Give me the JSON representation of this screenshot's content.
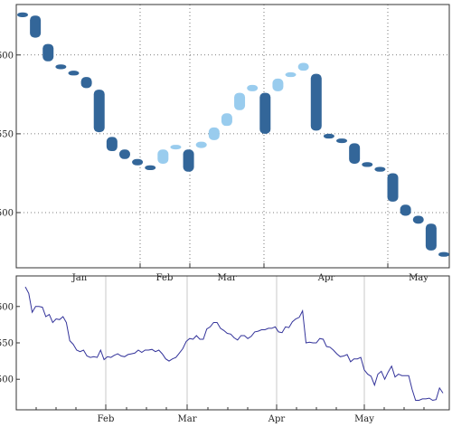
{
  "chart_data": [
    {
      "type": "candlestick",
      "panel": "main",
      "y_ticks": [
        500,
        550,
        600
      ],
      "ylim": [
        465,
        632
      ],
      "x_ticks": [
        "Jan",
        "Feb",
        "Mar",
        "Apr",
        "May"
      ],
      "grid": "dotted",
      "colors": {
        "down": "#336699",
        "up": "#99ccee"
      },
      "candles": [
        {
          "open": 627,
          "close": 624
        },
        {
          "open": 625,
          "close": 611
        },
        {
          "open": 607,
          "close": 596
        },
        {
          "open": 594,
          "close": 591
        },
        {
          "open": 590,
          "close": 587
        },
        {
          "open": 586,
          "close": 579
        },
        {
          "open": 578,
          "close": 551
        },
        {
          "open": 548,
          "close": 539
        },
        {
          "open": 540,
          "close": 534
        },
        {
          "open": 534,
          "close": 530
        },
        {
          "open": 530,
          "close": 527
        },
        {
          "open": 531,
          "close": 540
        },
        {
          "open": 541,
          "close": 543
        },
        {
          "open": 540,
          "close": 526
        },
        {
          "open": 541,
          "close": 545
        },
        {
          "open": 546,
          "close": 554
        },
        {
          "open": 555,
          "close": 563
        },
        {
          "open": 565,
          "close": 576
        },
        {
          "open": 577,
          "close": 581
        },
        {
          "open": 576,
          "close": 550
        },
        {
          "open": 577,
          "close": 585
        },
        {
          "open": 586,
          "close": 589
        },
        {
          "open": 590,
          "close": 595
        },
        {
          "open": 588,
          "close": 552
        },
        {
          "open": 550,
          "close": 547
        },
        {
          "open": 547,
          "close": 545
        },
        {
          "open": 544,
          "close": 531
        },
        {
          "open": 532,
          "close": 529
        },
        {
          "open": 529,
          "close": 526
        },
        {
          "open": 525,
          "close": 507
        },
        {
          "open": 505,
          "close": 498
        },
        {
          "open": 498,
          "close": 493
        },
        {
          "open": 493,
          "close": 476
        },
        {
          "open": 475,
          "close": 472
        }
      ]
    },
    {
      "type": "line",
      "panel": "overview",
      "y_ticks": [
        500,
        550,
        600
      ],
      "ylim": [
        458,
        642
      ],
      "x_ticks": [
        "Feb",
        "Mar",
        "Apr",
        "May"
      ],
      "grid": "vertical",
      "color": "#33339a",
      "values": [
        627,
        618,
        592,
        600,
        600,
        599,
        586,
        589,
        578,
        583,
        582,
        586,
        578,
        553,
        548,
        540,
        538,
        540,
        532,
        530,
        531,
        530,
        540,
        527,
        531,
        530,
        533,
        535,
        532,
        531,
        534,
        535,
        536,
        540,
        537,
        540,
        540,
        541,
        538,
        540,
        535,
        528,
        525,
        528,
        530,
        536,
        542,
        552,
        556,
        555,
        560,
        555,
        555,
        569,
        572,
        578,
        578,
        570,
        567,
        563,
        562,
        557,
        554,
        560,
        560,
        556,
        559,
        565,
        566,
        568,
        568,
        570,
        570,
        572,
        565,
        564,
        572,
        571,
        579,
        583,
        585,
        594,
        550,
        551,
        550,
        550,
        556,
        555,
        545,
        544,
        540,
        535,
        531,
        532,
        534,
        524,
        528,
        528,
        530,
        513,
        507,
        504,
        492,
        507,
        511,
        500,
        510,
        518,
        503,
        507,
        505,
        505,
        505,
        486,
        471,
        471,
        473,
        473,
        474,
        471,
        472,
        488,
        481
      ]
    }
  ]
}
